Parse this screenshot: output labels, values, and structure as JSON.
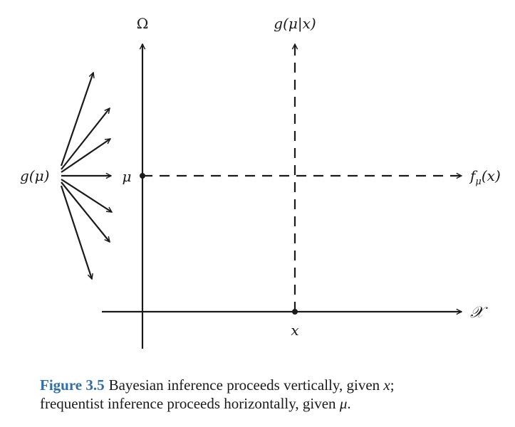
{
  "labels": {
    "omega": "Ω",
    "posterior": "g(μ|x)",
    "prior": "g(μ)",
    "mu": "μ",
    "likelihood_f": "f",
    "likelihood_sub": "μ",
    "likelihood_arg": "(x)",
    "sample_space": "𝒳",
    "x": "x"
  },
  "caption": {
    "label": "Figure 3.5",
    "line1": "Bayesian inference proceeds vertically, given ",
    "line1_var": "x",
    "line1_end": ";",
    "line2": "frequentist inference proceeds horizontally, given ",
    "line2_var": "μ",
    "line2_end": "."
  }
}
